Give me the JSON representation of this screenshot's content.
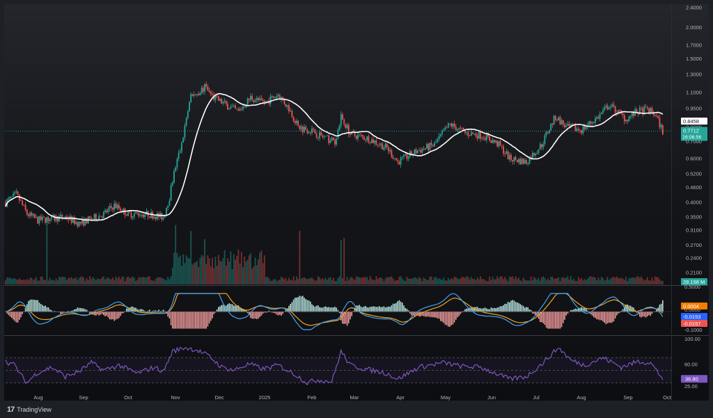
{
  "chart_data": {
    "type": "candlestick",
    "price_axis": {
      "scale": "log",
      "ticks": [
        "2.4000",
        "2.0000",
        "1.7000",
        "1.5000",
        "1.3000",
        "1.1000",
        "0.9500",
        "0.8000",
        "0.7000",
        "0.6000",
        "0.5200",
        "0.4600",
        "0.4000",
        "0.3500",
        "0.3100",
        "0.2700",
        "0.2400",
        "0.2100"
      ],
      "last_price": "0.7712",
      "last_price_countdown": "16:06:56",
      "ma_value": "0.8458",
      "price_line_color": "#26a69a",
      "ma_color": "#ffffff"
    },
    "price_keyframes": [
      {
        "x": "Jul 26",
        "y": 0.4
      },
      {
        "x": "Aug 2",
        "y": 0.43
      },
      {
        "x": "Aug 9",
        "y": 0.36
      },
      {
        "x": "Aug 16",
        "y": 0.34
      },
      {
        "x": "Sep 3",
        "y": 0.35
      },
      {
        "x": "Sep 12",
        "y": 0.33
      },
      {
        "x": "Sep 28",
        "y": 0.36
      },
      {
        "x": "Oct 5",
        "y": 0.39
      },
      {
        "x": "Oct 14",
        "y": 0.36
      },
      {
        "x": "Oct 27",
        "y": 0.36
      },
      {
        "x": "Nov 6",
        "y": 0.35
      },
      {
        "x": "Nov 10",
        "y": 0.42
      },
      {
        "x": "Nov 14",
        "y": 0.56
      },
      {
        "x": "Nov 18",
        "y": 0.68
      },
      {
        "x": "Nov 24",
        "y": 1.05
      },
      {
        "x": "Dec 3",
        "y": 1.15
      },
      {
        "x": "Dec 9",
        "y": 1.05
      },
      {
        "x": "Dec 17",
        "y": 0.98
      },
      {
        "x": "Dec 25",
        "y": 0.92
      },
      {
        "x": "Jan 2",
        "y": 1.05
      },
      {
        "x": "Jan 11",
        "y": 1.0
      },
      {
        "x": "Jan 20",
        "y": 1.08
      },
      {
        "x": "Jan 27",
        "y": 0.95
      },
      {
        "x": "Feb 2",
        "y": 0.8
      },
      {
        "x": "Feb 10",
        "y": 0.78
      },
      {
        "x": "Feb 20",
        "y": 0.72
      },
      {
        "x": "Feb 27",
        "y": 0.7
      },
      {
        "x": "Mar 2",
        "y": 0.88
      },
      {
        "x": "Mar 8",
        "y": 0.75
      },
      {
        "x": "Mar 20",
        "y": 0.72
      },
      {
        "x": "Apr 1",
        "y": 0.66
      },
      {
        "x": "Apr 8",
        "y": 0.58
      },
      {
        "x": "Apr 20",
        "y": 0.64
      },
      {
        "x": "May 2",
        "y": 0.68
      },
      {
        "x": "May 12",
        "y": 0.82
      },
      {
        "x": "May 22",
        "y": 0.76
      },
      {
        "x": "Jun 3",
        "y": 0.74
      },
      {
        "x": "Jun 13",
        "y": 0.68
      },
      {
        "x": "Jun 20",
        "y": 0.6
      },
      {
        "x": "Jul 1",
        "y": 0.58
      },
      {
        "x": "Jul 11",
        "y": 0.68
      },
      {
        "x": "Jul 20",
        "y": 0.88
      },
      {
        "x": "Jul 27",
        "y": 0.8
      },
      {
        "x": "Aug 6",
        "y": 0.78
      },
      {
        "x": "Aug 17",
        "y": 0.88
      },
      {
        "x": "Aug 24",
        "y": 0.98
      },
      {
        "x": "Sep 4",
        "y": 0.86
      },
      {
        "x": "Sep 11",
        "y": 0.92
      },
      {
        "x": "Sep 18",
        "y": 0.94
      },
      {
        "x": "Sep 23",
        "y": 0.9
      },
      {
        "x": "Sep 28",
        "y": 0.77
      }
    ],
    "volume": {
      "label": "28.198 M",
      "spike_dates": [
        "Nov 14",
        "Nov 24",
        "Dec 3",
        "Feb 3",
        "Mar 2",
        "Mar 4",
        "Aug 22"
      ]
    },
    "oscillator": {
      "ticks": [
        "0.5000",
        "0.0000",
        "-0.1000"
      ],
      "values": [
        {
          "text": "0.0004",
          "color": "#f57c00"
        },
        {
          "text": "-0.0153",
          "color": "#2962ff"
        },
        {
          "text": "-0.0157",
          "color": "#ef5350"
        }
      ],
      "histogram_pos_color": "#b2dfdb",
      "histogram_neg_color": "#ef9a9a",
      "line_colors": [
        "#f5a623",
        "#42a5f5"
      ]
    },
    "rsi": {
      "ticks": [
        "100.00",
        "60.00",
        "40.00",
        "25.00"
      ],
      "value": "36.80",
      "color": "#7e57c2",
      "band_fill": "#7e57c2",
      "keyframes": [
        {
          "x": "Jul 26",
          "y": 64
        },
        {
          "x": "Aug 1",
          "y": 58
        },
        {
          "x": "Aug 5",
          "y": 42
        },
        {
          "x": "Aug 9",
          "y": 30
        },
        {
          "x": "Aug 15",
          "y": 45
        },
        {
          "x": "Aug 25",
          "y": 55
        },
        {
          "x": "Sep 3",
          "y": 40
        },
        {
          "x": "Sep 12",
          "y": 48
        },
        {
          "x": "Sep 20",
          "y": 62
        },
        {
          "x": "Sep 28",
          "y": 50
        },
        {
          "x": "Oct 8",
          "y": 58
        },
        {
          "x": "Oct 20",
          "y": 45
        },
        {
          "x": "Oct 31",
          "y": 55
        },
        {
          "x": "Nov 6",
          "y": 48
        },
        {
          "x": "Nov 12",
          "y": 80
        },
        {
          "x": "Nov 20",
          "y": 86
        },
        {
          "x": "Nov 28",
          "y": 82
        },
        {
          "x": "Dec 6",
          "y": 72
        },
        {
          "x": "Dec 14",
          "y": 55
        },
        {
          "x": "Dec 22",
          "y": 50
        },
        {
          "x": "Jan 1",
          "y": 60
        },
        {
          "x": "Jan 10",
          "y": 52
        },
        {
          "x": "Jan 20",
          "y": 58
        },
        {
          "x": "Feb 1",
          "y": 42
        },
        {
          "x": "Feb 8",
          "y": 30
        },
        {
          "x": "Feb 14",
          "y": 35
        },
        {
          "x": "Feb 24",
          "y": 32
        },
        {
          "x": "Mar 2",
          "y": 80
        },
        {
          "x": "Mar 8",
          "y": 58
        },
        {
          "x": "Mar 18",
          "y": 52
        },
        {
          "x": "Apr 1",
          "y": 45
        },
        {
          "x": "Apr 8",
          "y": 36
        },
        {
          "x": "Apr 22",
          "y": 55
        },
        {
          "x": "May 8",
          "y": 62
        },
        {
          "x": "May 20",
          "y": 56
        },
        {
          "x": "Jun 1",
          "y": 55
        },
        {
          "x": "Jun 10",
          "y": 46
        },
        {
          "x": "Jun 20",
          "y": 36
        },
        {
          "x": "Jul 1",
          "y": 40
        },
        {
          "x": "Jul 12",
          "y": 62
        },
        {
          "x": "Jul 22",
          "y": 86
        },
        {
          "x": "Jul 30",
          "y": 66
        },
        {
          "x": "Aug 8",
          "y": 58
        },
        {
          "x": "Aug 20",
          "y": 70
        },
        {
          "x": "Sep 1",
          "y": 55
        },
        {
          "x": "Sep 12",
          "y": 64
        },
        {
          "x": "Sep 20",
          "y": 62
        },
        {
          "x": "Sep 28",
          "y": 36.8
        }
      ]
    },
    "time_axis": {
      "labels": [
        "Aug",
        "Sep",
        "Oct",
        "Nov",
        "Dec",
        "2025",
        "Feb",
        "Mar",
        "Apr",
        "May",
        "Jun",
        "Jul",
        "Aug",
        "Sep",
        "Oct"
      ]
    },
    "up_color": "#26a69a",
    "down_color": "#ef5350"
  },
  "branding": {
    "logo_mark": "17",
    "logo_text": "TradingView"
  }
}
